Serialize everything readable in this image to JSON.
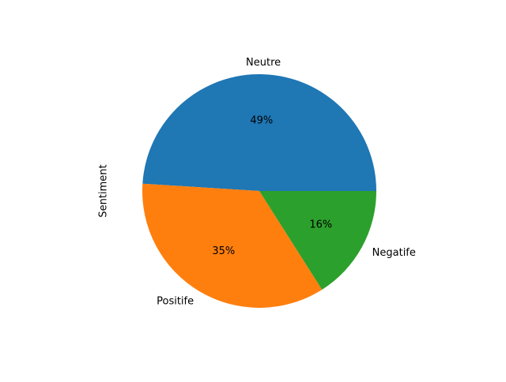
{
  "chart_data": {
    "type": "pie",
    "ylabel": "Sentiment",
    "slices": [
      {
        "label": "Neutre",
        "value": 49,
        "pct_label": "49%",
        "color": "#1f77b4"
      },
      {
        "label": "Positife",
        "value": 35,
        "pct_label": "35%",
        "color": "#ff7f0e"
      },
      {
        "label": "Negatife",
        "value": 16,
        "pct_label": "16%",
        "color": "#2ca02c"
      }
    ]
  }
}
